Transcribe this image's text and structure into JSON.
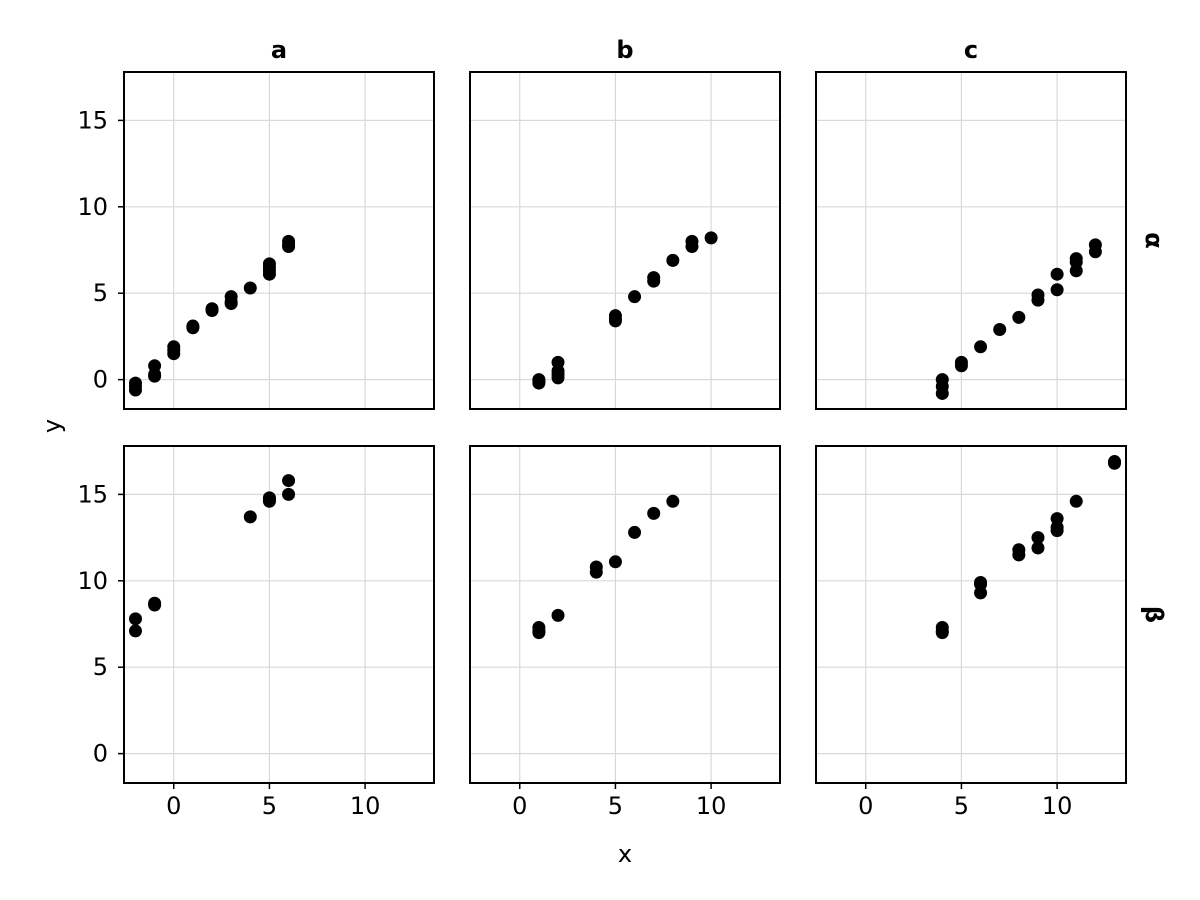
{
  "chart_data": {
    "type": "scatter",
    "xlabel": "x",
    "ylabel": "y",
    "xlim": [
      -2.6,
      13.6
    ],
    "ylim": [
      -1.7,
      17.8
    ],
    "xticks": [
      0,
      5,
      10
    ],
    "yticks": [
      0,
      5,
      10,
      15
    ],
    "grid": true,
    "column_labels": [
      "a",
      "b",
      "c"
    ],
    "row_labels": [
      "α",
      "β"
    ],
    "point_color": "#000000",
    "panels": [
      {
        "column": "a",
        "row": "α",
        "points": [
          [
            -2,
            -0.6
          ],
          [
            -2,
            -0.2
          ],
          [
            -2,
            -0.4
          ],
          [
            -1,
            0.2
          ],
          [
            -1,
            0.8
          ],
          [
            -1,
            0.3
          ],
          [
            0,
            1.5
          ],
          [
            0,
            1.9
          ],
          [
            0,
            1.7
          ],
          [
            1,
            3.0
          ],
          [
            1,
            3.1
          ],
          [
            2,
            4.0
          ],
          [
            2,
            4.1
          ],
          [
            3,
            4.5
          ],
          [
            3,
            4.8
          ],
          [
            3,
            4.4
          ],
          [
            4,
            5.3
          ],
          [
            5,
            6.1
          ],
          [
            5,
            6.5
          ],
          [
            5,
            6.7
          ],
          [
            5,
            6.3
          ],
          [
            6,
            7.7
          ],
          [
            6,
            8.0
          ],
          [
            6,
            7.8
          ]
        ]
      },
      {
        "column": "b",
        "row": "α",
        "points": [
          [
            1,
            -0.2
          ],
          [
            1,
            0.0
          ],
          [
            1,
            -0.1
          ],
          [
            2,
            0.1
          ],
          [
            2,
            0.5
          ],
          [
            2,
            1.0
          ],
          [
            2,
            0.3
          ],
          [
            5,
            3.4
          ],
          [
            5,
            3.7
          ],
          [
            5,
            3.5
          ],
          [
            6,
            4.8
          ],
          [
            7,
            5.7
          ],
          [
            7,
            5.9
          ],
          [
            8,
            6.9
          ],
          [
            9,
            7.7
          ],
          [
            9,
            8.0
          ],
          [
            10,
            8.2
          ]
        ]
      },
      {
        "column": "c",
        "row": "α",
        "points": [
          [
            4,
            -0.8
          ],
          [
            4,
            -0.4
          ],
          [
            4,
            0.0
          ],
          [
            5,
            0.8
          ],
          [
            5,
            1.0
          ],
          [
            6,
            1.9
          ],
          [
            7,
            2.9
          ],
          [
            8,
            3.6
          ],
          [
            9,
            4.6
          ],
          [
            9,
            4.9
          ],
          [
            10,
            5.2
          ],
          [
            10,
            6.1
          ],
          [
            11,
            6.3
          ],
          [
            11,
            6.8
          ],
          [
            11,
            7.0
          ],
          [
            12,
            7.4
          ],
          [
            12,
            7.8
          ]
        ]
      },
      {
        "column": "a",
        "row": "β",
        "points": [
          [
            -2,
            7.1
          ],
          [
            -2,
            7.8
          ],
          [
            -1,
            8.6
          ],
          [
            -1,
            8.7
          ],
          [
            4,
            13.7
          ],
          [
            5,
            14.6
          ],
          [
            5,
            14.8
          ],
          [
            5,
            14.7
          ],
          [
            6,
            15.0
          ],
          [
            6,
            15.8
          ]
        ]
      },
      {
        "column": "b",
        "row": "β",
        "points": [
          [
            1,
            7.0
          ],
          [
            1,
            7.3
          ],
          [
            1,
            7.1
          ],
          [
            2,
            8.0
          ],
          [
            4,
            10.5
          ],
          [
            4,
            10.8
          ],
          [
            5,
            11.1
          ],
          [
            6,
            12.8
          ],
          [
            7,
            13.9
          ],
          [
            8,
            14.6
          ]
        ]
      },
      {
        "column": "c",
        "row": "β",
        "points": [
          [
            4,
            7.0
          ],
          [
            4,
            7.3
          ],
          [
            4,
            7.1
          ],
          [
            6,
            9.3
          ],
          [
            6,
            9.8
          ],
          [
            6,
            9.9
          ],
          [
            8,
            11.5
          ],
          [
            8,
            11.8
          ],
          [
            9,
            11.9
          ],
          [
            9,
            12.5
          ],
          [
            10,
            12.9
          ],
          [
            10,
            13.6
          ],
          [
            10,
            13.1
          ],
          [
            11,
            14.6
          ],
          [
            13,
            16.9
          ],
          [
            13,
            16.8
          ]
        ]
      }
    ]
  }
}
